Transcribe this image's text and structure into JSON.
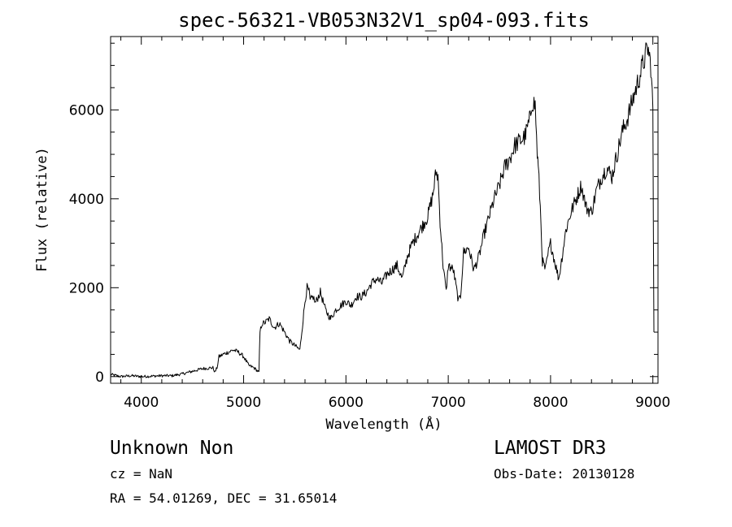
{
  "chart_data": {
    "type": "line",
    "title": "spec-56321-VB053N32V1_sp04-093.fits",
    "xlabel": "Wavelength (Å)",
    "ylabel": "Flux (relative)",
    "xlim": [
      3700,
      9050
    ],
    "ylim": [
      -150,
      7650
    ],
    "xticks": [
      4000,
      5000,
      6000,
      7000,
      8000,
      9000
    ],
    "yticks": [
      0,
      2000,
      4000,
      6000
    ],
    "xtick_labels": [
      "4000",
      "5000",
      "6000",
      "7000",
      "8000",
      "9000"
    ],
    "ytick_labels": [
      "0",
      "2000",
      "4000",
      "6000"
    ],
    "series": [
      {
        "name": "flux",
        "x": [
          3700,
          3800,
          3900,
          4000,
          4100,
          4200,
          4300,
          4400,
          4500,
          4600,
          4700,
          4720,
          4740,
          4760,
          4800,
          4850,
          4900,
          4950,
          5000,
          5050,
          5100,
          5150,
          5160,
          5180,
          5200,
          5250,
          5300,
          5350,
          5400,
          5450,
          5500,
          5550,
          5600,
          5620,
          5640,
          5650,
          5680,
          5700,
          5750,
          5800,
          5850,
          5900,
          5950,
          6000,
          6050,
          6100,
          6150,
          6200,
          6250,
          6300,
          6350,
          6400,
          6450,
          6500,
          6550,
          6600,
          6650,
          6700,
          6750,
          6800,
          6850,
          6880,
          6900,
          6920,
          6950,
          6980,
          7000,
          7050,
          7100,
          7120,
          7150,
          7200,
          7250,
          7300,
          7350,
          7400,
          7450,
          7500,
          7550,
          7600,
          7650,
          7700,
          7750,
          7800,
          7820,
          7850,
          7870,
          7880,
          7900,
          7920,
          7950,
          7980,
          8000,
          8050,
          8080,
          8100,
          8150,
          8200,
          8250,
          8300,
          8350,
          8400,
          8450,
          8500,
          8550,
          8600,
          8650,
          8700,
          8750,
          8800,
          8850,
          8900,
          8950,
          8980,
          9000,
          9010
        ],
        "y": [
          50,
          0,
          20,
          0,
          10,
          20,
          20,
          60,
          120,
          180,
          200,
          100,
          200,
          450,
          500,
          550,
          600,
          550,
          450,
          250,
          200,
          100,
          1000,
          1200,
          1200,
          1300,
          1100,
          1200,
          1000,
          800,
          700,
          600,
          1700,
          2000,
          1900,
          1700,
          1800,
          1650,
          1900,
          1500,
          1300,
          1500,
          1600,
          1700,
          1600,
          1800,
          1800,
          1900,
          2100,
          2200,
          2100,
          2300,
          2400,
          2500,
          2200,
          2700,
          3000,
          3200,
          3400,
          3600,
          4100,
          4600,
          4500,
          3500,
          2500,
          1900,
          2500,
          2400,
          1700,
          1800,
          2800,
          2900,
          2400,
          2700,
          3200,
          3600,
          4000,
          4300,
          4700,
          4900,
          5200,
          5300,
          5400,
          5800,
          6200,
          6100,
          5000,
          4700,
          3800,
          2600,
          2400,
          2800,
          3000,
          2500,
          2200,
          2500,
          3300,
          3700,
          4000,
          4300,
          3800,
          3700,
          4200,
          4500,
          4700,
          4500,
          5000,
          5500,
          5800,
          6200,
          6600,
          7000,
          7400,
          7000,
          6000,
          1000
        ]
      }
    ]
  },
  "info": {
    "class_line": "Unknown   Non",
    "cz": "cz = NaN",
    "coords": "RA =  54.01269, DEC =  31.65014",
    "survey": "LAMOST DR3",
    "obs_date": "Obs-Date: 20130128"
  }
}
